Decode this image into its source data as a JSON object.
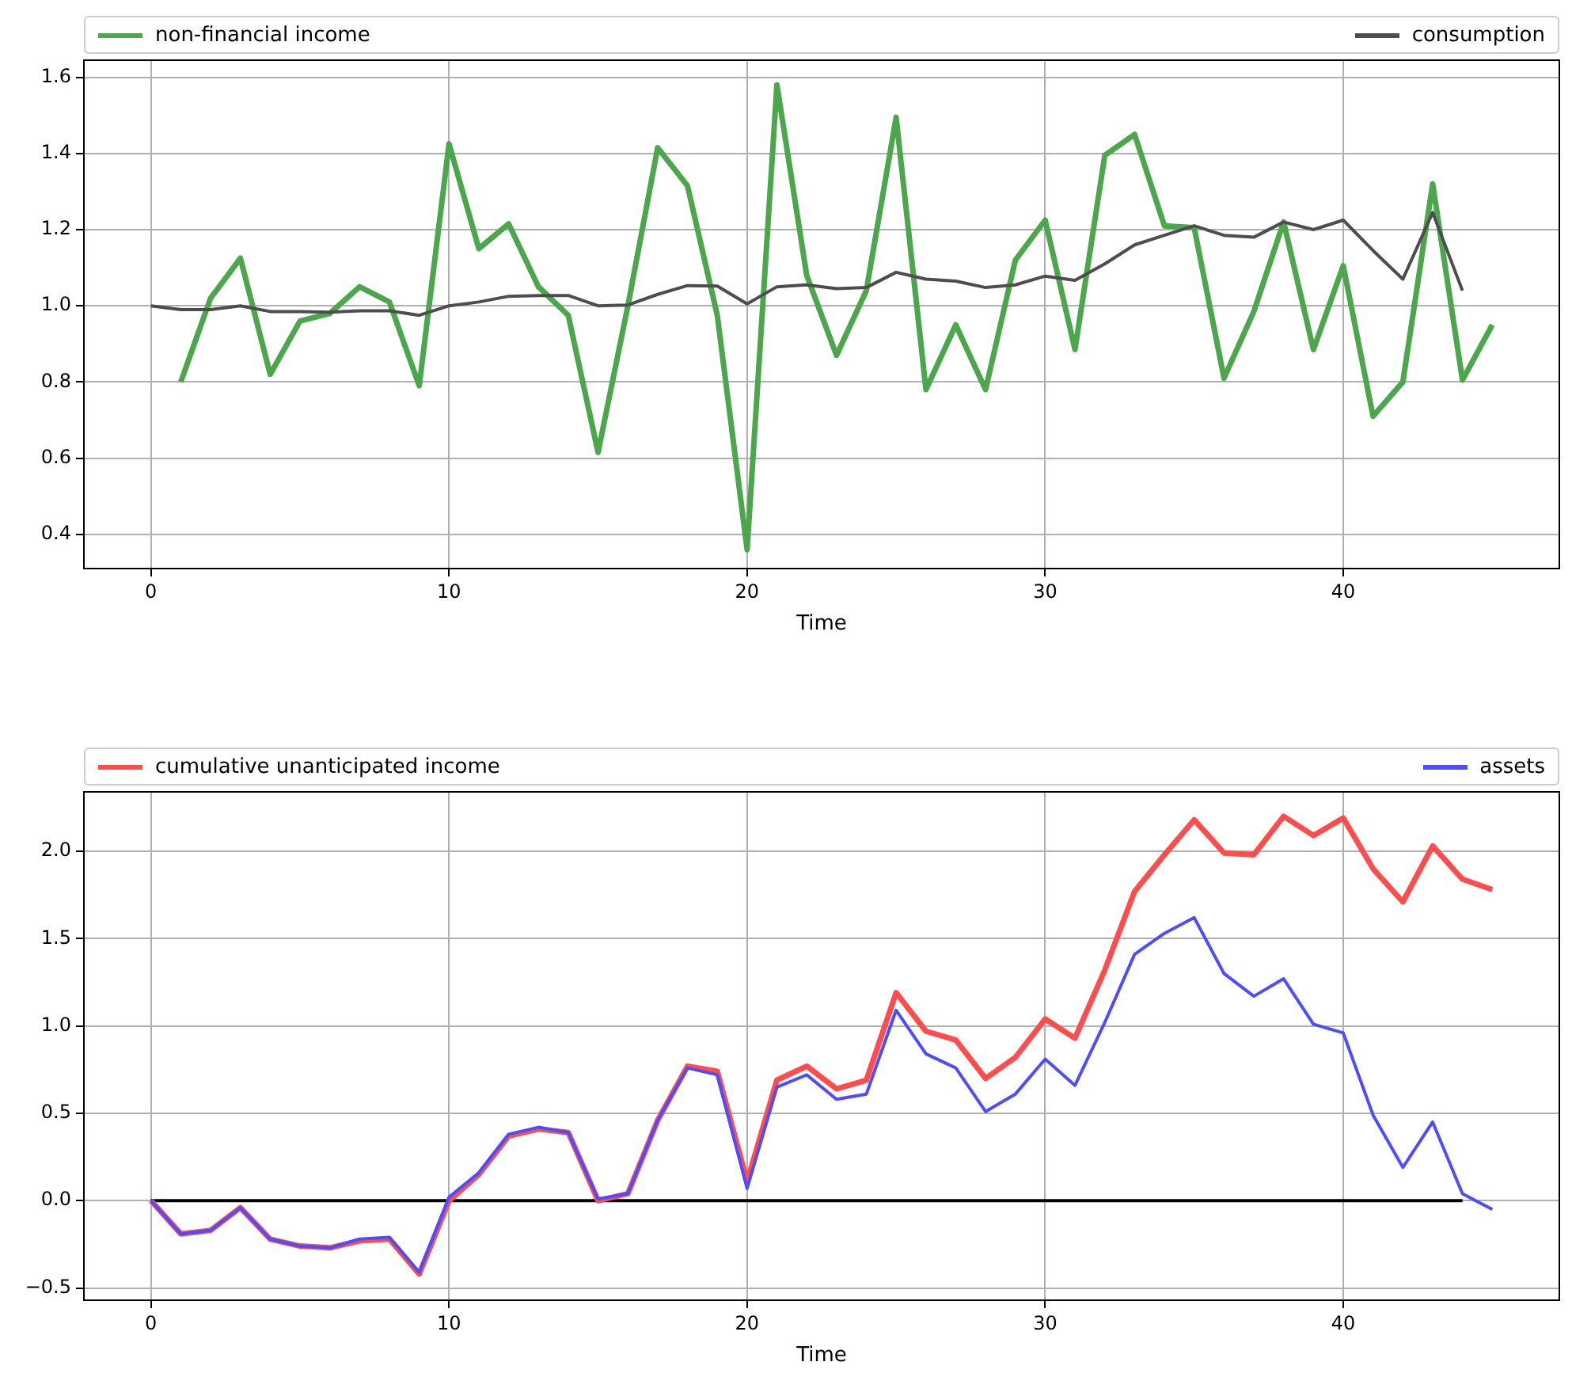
{
  "chart_data": [
    {
      "type": "line",
      "xlabel": "Time",
      "x": [
        0,
        1,
        2,
        3,
        4,
        5,
        6,
        7,
        8,
        9,
        10,
        11,
        12,
        13,
        14,
        15,
        16,
        17,
        18,
        19,
        20,
        21,
        22,
        23,
        24,
        25,
        26,
        27,
        28,
        29,
        30,
        31,
        32,
        33,
        34,
        35,
        36,
        37,
        38,
        39,
        40,
        41,
        42,
        43,
        44,
        45
      ],
      "xlim": [
        -2.25,
        47.25
      ],
      "xticks": [
        0,
        10,
        20,
        30,
        40
      ],
      "ylim": [
        0.31,
        1.645
      ],
      "yticks": [
        {
          "value": 0.4,
          "label": "0.4"
        },
        {
          "value": 0.6,
          "label": "0.6"
        },
        {
          "value": 0.8,
          "label": "0.8"
        },
        {
          "value": 1.0,
          "label": "1.0"
        },
        {
          "value": 1.2,
          "label": "1.2"
        },
        {
          "value": 1.4,
          "label": "1.4"
        },
        {
          "value": 1.6,
          "label": "1.6"
        }
      ],
      "grid": true,
      "legend": "top",
      "series": [
        {
          "name": "non-financial income",
          "color": "#4ca64c",
          "values": [
            null,
            0.8,
            1.02,
            1.125,
            0.82,
            0.96,
            0.98,
            1.05,
            1.01,
            0.79,
            1.425,
            1.15,
            1.215,
            1.05,
            0.975,
            0.615,
            1.0,
            1.415,
            1.315,
            0.975,
            0.36,
            1.58,
            1.08,
            0.87,
            1.04,
            1.495,
            0.78,
            0.95,
            0.78,
            1.12,
            1.225,
            0.885,
            1.395,
            1.45,
            1.21,
            1.205,
            0.81,
            0.985,
            1.22,
            0.885,
            1.105,
            0.71,
            0.8,
            1.32,
            0.805,
            0.95
          ]
        },
        {
          "name": "consumption",
          "color": "#4d4d4d",
          "values": [
            1.0,
            0.99,
            0.99,
            1.0,
            0.985,
            0.985,
            0.983,
            0.987,
            0.987,
            0.975,
            1.0,
            1.01,
            1.025,
            1.027,
            1.027,
            1.0,
            1.002,
            1.03,
            1.053,
            1.052,
            1.005,
            1.05,
            1.055,
            1.045,
            1.048,
            1.088,
            1.07,
            1.065,
            1.048,
            1.055,
            1.078,
            1.067,
            1.11,
            1.16,
            1.185,
            1.21,
            1.185,
            1.18,
            1.22,
            1.2,
            1.225,
            1.145,
            1.07,
            1.245,
            1.04,
            null
          ]
        }
      ]
    },
    {
      "type": "line",
      "xlabel": "Time",
      "x": [
        0,
        1,
        2,
        3,
        4,
        5,
        6,
        7,
        8,
        9,
        10,
        11,
        12,
        13,
        14,
        15,
        16,
        17,
        18,
        19,
        20,
        21,
        22,
        23,
        24,
        25,
        26,
        27,
        28,
        29,
        30,
        31,
        32,
        33,
        34,
        35,
        36,
        37,
        38,
        39,
        40,
        41,
        42,
        43,
        44,
        45
      ],
      "xlim": [
        -2.25,
        47.25
      ],
      "xticks": [
        0,
        10,
        20,
        30,
        40
      ],
      "ylim": [
        -0.57,
        2.34
      ],
      "yticks": [
        {
          "value": -0.5,
          "label": "−0.5"
        },
        {
          "value": 0,
          "label": "0.0"
        },
        {
          "value": 0.5,
          "label": "0.5"
        },
        {
          "value": 1.0,
          "label": "1.0"
        },
        {
          "value": 1.5,
          "label": "1.5"
        },
        {
          "value": 2.0,
          "label": "2.0"
        }
      ],
      "grid": true,
      "legend": "top",
      "series": [
        {
          "name": "cumulative unanticipated income",
          "color": "#ff4d4d",
          "values": [
            0,
            -0.19,
            -0.17,
            -0.04,
            -0.22,
            -0.26,
            -0.27,
            -0.23,
            -0.22,
            -0.42,
            0.0,
            0.15,
            0.37,
            0.41,
            0.39,
            0.0,
            0.04,
            0.46,
            0.77,
            0.74,
            0.11,
            0.69,
            0.77,
            0.64,
            0.69,
            1.19,
            0.97,
            0.92,
            0.7,
            0.82,
            1.04,
            0.93,
            1.32,
            1.77,
            1.98,
            2.18,
            1.99,
            1.98,
            2.2,
            2.09,
            2.19,
            1.9,
            1.71,
            2.03,
            1.84,
            1.78
          ]
        },
        {
          "name": "assets",
          "color": "#4d4dff",
          "values": [
            0,
            -0.19,
            -0.17,
            -0.04,
            -0.22,
            -0.26,
            -0.27,
            -0.22,
            -0.21,
            -0.41,
            0.02,
            0.16,
            0.38,
            0.42,
            0.39,
            0.01,
            0.04,
            0.46,
            0.76,
            0.72,
            0.07,
            0.65,
            0.72,
            0.58,
            0.61,
            1.09,
            0.84,
            0.76,
            0.51,
            0.61,
            0.81,
            0.66,
            1.02,
            1.41,
            1.53,
            1.62,
            1.3,
            1.17,
            1.27,
            1.01,
            0.96,
            0.49,
            0.19,
            0.45,
            0.04,
            -0.05
          ]
        },
        {
          "color": "#000000",
          "x": [
            0,
            44
          ],
          "values": [
            0,
            0
          ]
        }
      ]
    }
  ]
}
